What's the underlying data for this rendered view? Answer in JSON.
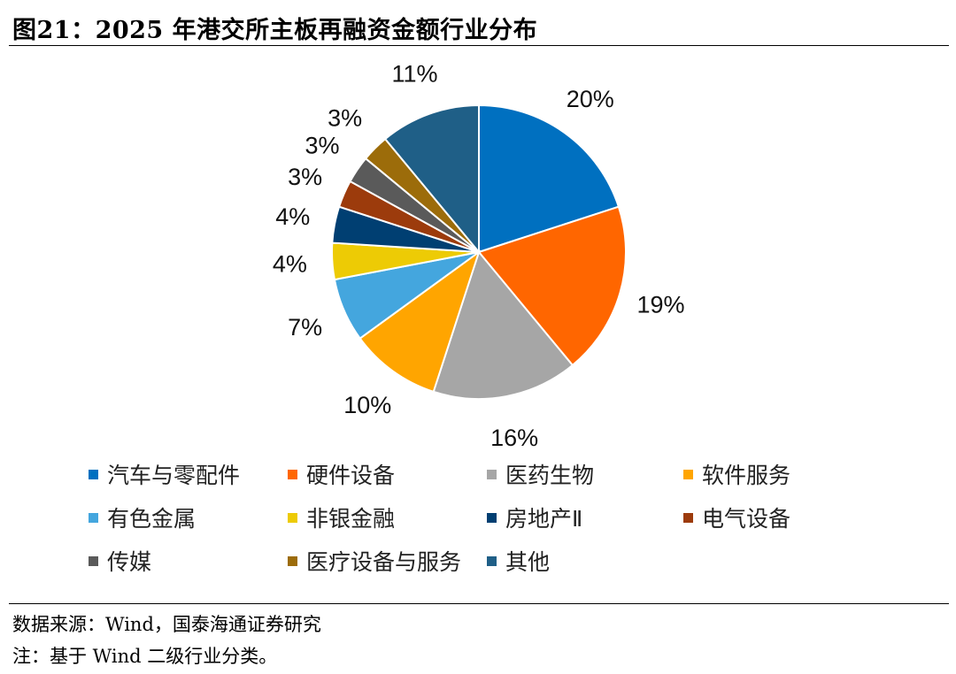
{
  "title": "图21：2025 年港交所主板再融资金额行业分布",
  "source": "数据来源：Wind，国泰海通证券研究",
  "note": "注：基于 Wind 二级行业分类。",
  "chart_data": {
    "type": "pie",
    "title": "图21：2025 年港交所主板再融资金额行业分布",
    "start": "12 o'clock, clockwise",
    "legend_position": "bottom",
    "slices": [
      {
        "label": "汽车与零配件",
        "value": 20,
        "display": "20%",
        "color": "#0070C0"
      },
      {
        "label": "硬件设备",
        "value": 19,
        "display": "19%",
        "color": "#FF6600"
      },
      {
        "label": "医药生物",
        "value": 16,
        "display": "16%",
        "color": "#A6A6A6"
      },
      {
        "label": "软件服务",
        "value": 10,
        "display": "10%",
        "color": "#FFA500"
      },
      {
        "label": "有色金属",
        "value": 7,
        "display": "7%",
        "color": "#44A6DE"
      },
      {
        "label": "非银金融",
        "value": 4,
        "display": "4%",
        "color": "#EDCB05"
      },
      {
        "label": "房地产Ⅱ",
        "value": 4,
        "display": "4%",
        "color": "#003F72"
      },
      {
        "label": "电气设备",
        "value": 3,
        "display": "3%",
        "color": "#9C3B0C"
      },
      {
        "label": "传媒",
        "value": 3,
        "display": "3%",
        "color": "#5A5A5A"
      },
      {
        "label": "医疗设备与服务",
        "value": 3,
        "display": "3%",
        "color": "#9C6C0A"
      },
      {
        "label": "其他",
        "value": 11,
        "display": "11%",
        "color": "#1F5F87"
      }
    ]
  }
}
